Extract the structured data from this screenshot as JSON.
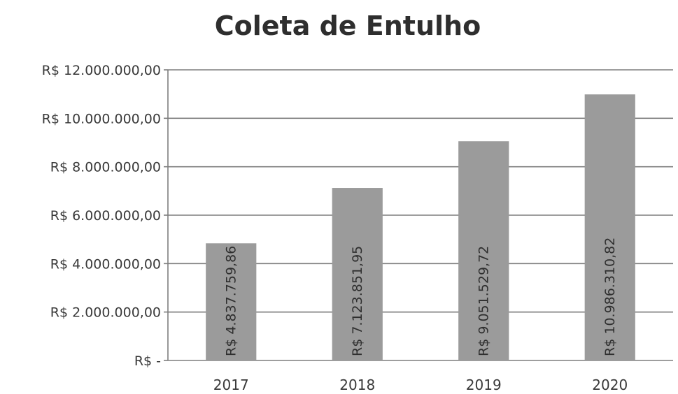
{
  "chart_data": {
    "type": "bar",
    "title": "Coleta de Entulho",
    "categories": [
      "2017",
      "2018",
      "2019",
      "2020"
    ],
    "values": [
      4837759.86,
      7123851.95,
      9051529.72,
      10986310.82
    ],
    "data_labels": [
      "R$ 4.837.759,86",
      "R$ 7.123.851,95",
      "R$ 9.051.529,72",
      "R$ 10.986.310,82"
    ],
    "y_ticks": [
      0,
      2000000,
      4000000,
      6000000,
      8000000,
      10000000,
      12000000
    ],
    "y_tick_labels": [
      "R$ -",
      "R$ 2.000.000,00",
      "R$ 4.000.000,00",
      "R$ 6.000.000,00",
      "R$ 8.000.000,00",
      "R$ 10.000.000,00",
      "R$ 12.000.000,00"
    ],
    "ylim": [
      0,
      12000000
    ],
    "xlabel": "",
    "ylabel": "",
    "grid": true,
    "legend": "none",
    "colors": {
      "bar": "#9b9b9b",
      "grid": "#7e7e7e",
      "text": "#3a3a3a"
    }
  }
}
